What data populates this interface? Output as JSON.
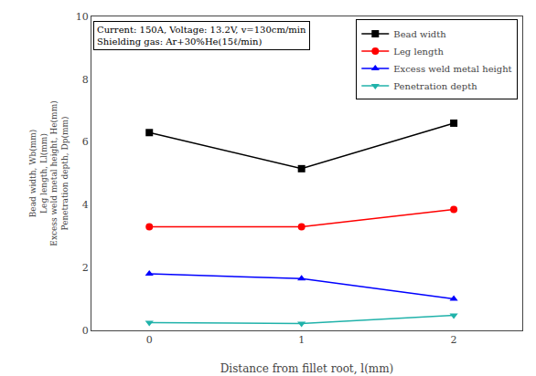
{
  "chart_data": {
    "type": "line",
    "x": [
      0,
      1,
      2
    ],
    "series": [
      {
        "name": "Bead width",
        "color": "black",
        "marker": "square",
        "values": [
          6.3,
          5.15,
          6.6
        ]
      },
      {
        "name": "Leg length",
        "color": "red",
        "marker": "circle",
        "values": [
          3.3,
          3.3,
          3.85
        ]
      },
      {
        "name": "Excess weld metal height",
        "color": "blue",
        "marker": "triangle-up",
        "values": [
          1.8,
          1.65,
          1.0
        ]
      },
      {
        "name": "Penetration depth",
        "color": "#20b2aa",
        "marker": "triangle-down",
        "values": [
          0.25,
          0.22,
          0.48
        ]
      }
    ],
    "x_label": "Distance from fillet root, l(mm)",
    "y_label": "Bead width, Wb(mm)\nLeg length, Ll(mm)\nExcess weld metal height, He(mm)\nPenetration depth, Dp(mm)",
    "annotation": "Current: 150A, Voltage: 13.2V, v=130cm/min\nShielding gas: Ar+30%He(15ℓ/min)",
    "xlim": [
      -0.38,
      2.45
    ],
    "xticks": [
      0,
      1,
      2
    ],
    "ylim": [
      0,
      10
    ],
    "yticks": [
      0,
      2,
      4,
      6,
      8,
      10
    ],
    "grid": false,
    "legend": "upper right"
  }
}
